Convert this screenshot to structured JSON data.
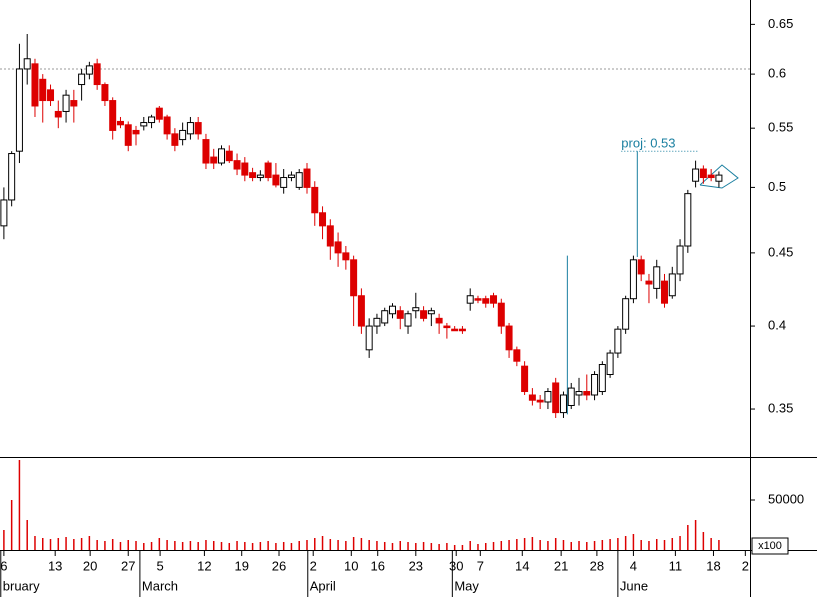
{
  "chart_data": {
    "type": "candlestick",
    "log_scale": true,
    "ylim": [
      0.324,
      0.676
    ],
    "yticks": [
      0.35,
      0.4,
      0.45,
      0.5,
      0.55,
      0.6,
      0.65
    ],
    "xlim": [
      -0.5,
      96
    ],
    "xticks": [
      {
        "value": 0,
        "label": "6"
      },
      {
        "value": 6.6,
        "label": "13"
      },
      {
        "value": 11.1,
        "label": "20"
      },
      {
        "value": 16,
        "label": "27"
      },
      {
        "value": 20.1,
        "label": "5"
      },
      {
        "value": 25.8,
        "label": "12"
      },
      {
        "value": 30.6,
        "label": "19"
      },
      {
        "value": 35.4,
        "label": "26"
      },
      {
        "value": 39.8,
        "label": "2"
      },
      {
        "value": 44.7,
        "label": "10"
      },
      {
        "value": 48.1,
        "label": "16"
      },
      {
        "value": 53,
        "label": "23"
      },
      {
        "value": 58.2,
        "label": "30"
      },
      {
        "value": 61.3,
        "label": "7"
      },
      {
        "value": 66.7,
        "label": "14"
      },
      {
        "value": 71.7,
        "label": "21"
      },
      {
        "value": 76.3,
        "label": "28"
      },
      {
        "value": 81,
        "label": "4"
      },
      {
        "value": 86.4,
        "label": "11"
      },
      {
        "value": 91.3,
        "label": "18"
      },
      {
        "value": 95.4,
        "label": "2"
      }
    ],
    "months": [
      {
        "value": -0.4,
        "label": "bruary"
      },
      {
        "value": 17.5,
        "label": "March"
      },
      {
        "value": 39.1,
        "label": "April"
      },
      {
        "value": 57.7,
        "label": "May"
      },
      {
        "value": 79,
        "label": "June"
      }
    ],
    "up_color": "#ffffff",
    "down_color": "#dd0000",
    "ohlc": [
      [
        0.47,
        0.5,
        0.46,
        0.49
      ],
      [
        0.49,
        0.53,
        0.485,
        0.528
      ],
      [
        0.53,
        0.63,
        0.52,
        0.605
      ],
      [
        0.605,
        0.64,
        0.59,
        0.615
      ],
      [
        0.61,
        0.615,
        0.56,
        0.57
      ],
      [
        0.595,
        0.6,
        0.555,
        0.575
      ],
      [
        0.585,
        0.59,
        0.57,
        0.575
      ],
      [
        0.565,
        0.575,
        0.55,
        0.56
      ],
      [
        0.565,
        0.585,
        0.555,
        0.58
      ],
      [
        0.575,
        0.585,
        0.555,
        0.57
      ],
      [
        0.59,
        0.605,
        0.575,
        0.6
      ],
      [
        0.6,
        0.612,
        0.595,
        0.608
      ],
      [
        0.61,
        0.615,
        0.585,
        0.59
      ],
      [
        0.59,
        0.592,
        0.57,
        0.575
      ],
      [
        0.575,
        0.578,
        0.54,
        0.548
      ],
      [
        0.556,
        0.56,
        0.55,
        0.553
      ],
      [
        0.553,
        0.556,
        0.53,
        0.535
      ],
      [
        0.548,
        0.552,
        0.535,
        0.545
      ],
      [
        0.552,
        0.56,
        0.548,
        0.555
      ],
      [
        0.555,
        0.562,
        0.55,
        0.56
      ],
      [
        0.568,
        0.57,
        0.555,
        0.558
      ],
      [
        0.56,
        0.562,
        0.54,
        0.545
      ],
      [
        0.545,
        0.55,
        0.53,
        0.535
      ],
      [
        0.54,
        0.555,
        0.535,
        0.548
      ],
      [
        0.545,
        0.56,
        0.54,
        0.555
      ],
      [
        0.555,
        0.56,
        0.54,
        0.545
      ],
      [
        0.54,
        0.545,
        0.515,
        0.52
      ],
      [
        0.525,
        0.532,
        0.515,
        0.52
      ],
      [
        0.52,
        0.535,
        0.518,
        0.532
      ],
      [
        0.53,
        0.535,
        0.52,
        0.522
      ],
      [
        0.522,
        0.528,
        0.51,
        0.515
      ],
      [
        0.52,
        0.525,
        0.505,
        0.51
      ],
      [
        0.512,
        0.516,
        0.505,
        0.508
      ],
      [
        0.508,
        0.514,
        0.505,
        0.51
      ],
      [
        0.52,
        0.522,
        0.505,
        0.508
      ],
      [
        0.51,
        0.52,
        0.5,
        0.502
      ],
      [
        0.5,
        0.515,
        0.495,
        0.508
      ],
      [
        0.508,
        0.513,
        0.505,
        0.51
      ],
      [
        0.5,
        0.515,
        0.498,
        0.512
      ],
      [
        0.515,
        0.52,
        0.495,
        0.5
      ],
      [
        0.5,
        0.505,
        0.47,
        0.48
      ],
      [
        0.48,
        0.485,
        0.46,
        0.47
      ],
      [
        0.47,
        0.475,
        0.445,
        0.455
      ],
      [
        0.458,
        0.465,
        0.44,
        0.45
      ],
      [
        0.45,
        0.455,
        0.438,
        0.445
      ],
      [
        0.445,
        0.448,
        0.4,
        0.42
      ],
      [
        0.42,
        0.425,
        0.395,
        0.4
      ],
      [
        0.385,
        0.405,
        0.38,
        0.4
      ],
      [
        0.4,
        0.408,
        0.395,
        0.405
      ],
      [
        0.402,
        0.412,
        0.4,
        0.41
      ],
      [
        0.408,
        0.415,
        0.405,
        0.413
      ],
      [
        0.41,
        0.413,
        0.398,
        0.405
      ],
      [
        0.4,
        0.41,
        0.395,
        0.408
      ],
      [
        0.41,
        0.422,
        0.405,
        0.412
      ],
      [
        0.41,
        0.413,
        0.403,
        0.405
      ],
      [
        0.408,
        0.412,
        0.4,
        0.41
      ],
      [
        0.405,
        0.408,
        0.395,
        0.402
      ],
      [
        0.4,
        0.402,
        0.392,
        0.399
      ],
      [
        0.398,
        0.4,
        0.397,
        0.397
      ],
      [
        0.398,
        0.4,
        0.395,
        0.397
      ],
      [
        0.415,
        0.425,
        0.41,
        0.42
      ],
      [
        0.418,
        0.42,
        0.415,
        0.417
      ],
      [
        0.418,
        0.42,
        0.412,
        0.415
      ],
      [
        0.42,
        0.422,
        0.412,
        0.415
      ],
      [
        0.415,
        0.418,
        0.395,
        0.4
      ],
      [
        0.4,
        0.402,
        0.38,
        0.385
      ],
      [
        0.385,
        0.387,
        0.375,
        0.378
      ],
      [
        0.375,
        0.378,
        0.358,
        0.36
      ],
      [
        0.358,
        0.362,
        0.352,
        0.355
      ],
      [
        0.355,
        0.358,
        0.35,
        0.354
      ],
      [
        0.354,
        0.362,
        0.35,
        0.36
      ],
      [
        0.365,
        0.368,
        0.345,
        0.348
      ],
      [
        0.348,
        0.36,
        0.345,
        0.358
      ],
      [
        0.352,
        0.365,
        0.35,
        0.362
      ],
      [
        0.358,
        0.368,
        0.352,
        0.36
      ],
      [
        0.36,
        0.37,
        0.355,
        0.358
      ],
      [
        0.358,
        0.372,
        0.355,
        0.37
      ],
      [
        0.36,
        0.378,
        0.358,
        0.376
      ],
      [
        0.37,
        0.385,
        0.368,
        0.383
      ],
      [
        0.383,
        0.4,
        0.38,
        0.398
      ],
      [
        0.398,
        0.42,
        0.395,
        0.418
      ],
      [
        0.418,
        0.448,
        0.415,
        0.445
      ],
      [
        0.445,
        0.448,
        0.43,
        0.435
      ],
      [
        0.43,
        0.435,
        0.415,
        0.428
      ],
      [
        0.425,
        0.445,
        0.418,
        0.44
      ],
      [
        0.43,
        0.435,
        0.412,
        0.415
      ],
      [
        0.42,
        0.44,
        0.418,
        0.435
      ],
      [
        0.435,
        0.46,
        0.43,
        0.455
      ],
      [
        0.455,
        0.498,
        0.45,
        0.495
      ],
      [
        0.505,
        0.522,
        0.5,
        0.515
      ],
      [
        0.515,
        0.518,
        0.503,
        0.508
      ],
      [
        0.51,
        0.515,
        0.505,
        0.508
      ],
      [
        0.505,
        0.513,
        0.5,
        0.51
      ]
    ],
    "volume": {
      "color": "#dd0000",
      "ylim": [
        0,
        93000
      ],
      "yticks": [
        50000
      ],
      "unit_label": "x100",
      "values": [
        20000,
        50000,
        90000,
        30000,
        14000,
        12000,
        11000,
        12000,
        13000,
        11000,
        12000,
        14000,
        10000,
        9000,
        11000,
        8000,
        10000,
        9000,
        7000,
        8000,
        12000,
        10000,
        9000,
        8000,
        9000,
        8000,
        10000,
        9000,
        8000,
        7000,
        9000,
        8000,
        7000,
        8000,
        9000,
        7000,
        8000,
        7000,
        9000,
        10000,
        12000,
        14000,
        11000,
        10000,
        9000,
        13000,
        12000,
        10000,
        9000,
        8000,
        7000,
        9000,
        8000,
        7000,
        8000,
        7000,
        6000,
        7000,
        5000,
        5000,
        9000,
        6000,
        7000,
        8000,
        9000,
        10000,
        11000,
        12000,
        13000,
        10000,
        9000,
        12000,
        10000,
        8000,
        9000,
        8000,
        9000,
        10000,
        11000,
        12000,
        14000,
        16000,
        10000,
        9000,
        11000,
        10000,
        12000,
        14000,
        25000,
        30000,
        18000,
        12000,
        10000
      ]
    },
    "reference_line": 0.605,
    "measure_line": {
      "x": 72.5,
      "from": 0.347,
      "to": 0.448
    },
    "projection": {
      "label": "proj: 0.53",
      "x": 81.5,
      "from": 0.447,
      "to": 0.53
    }
  }
}
